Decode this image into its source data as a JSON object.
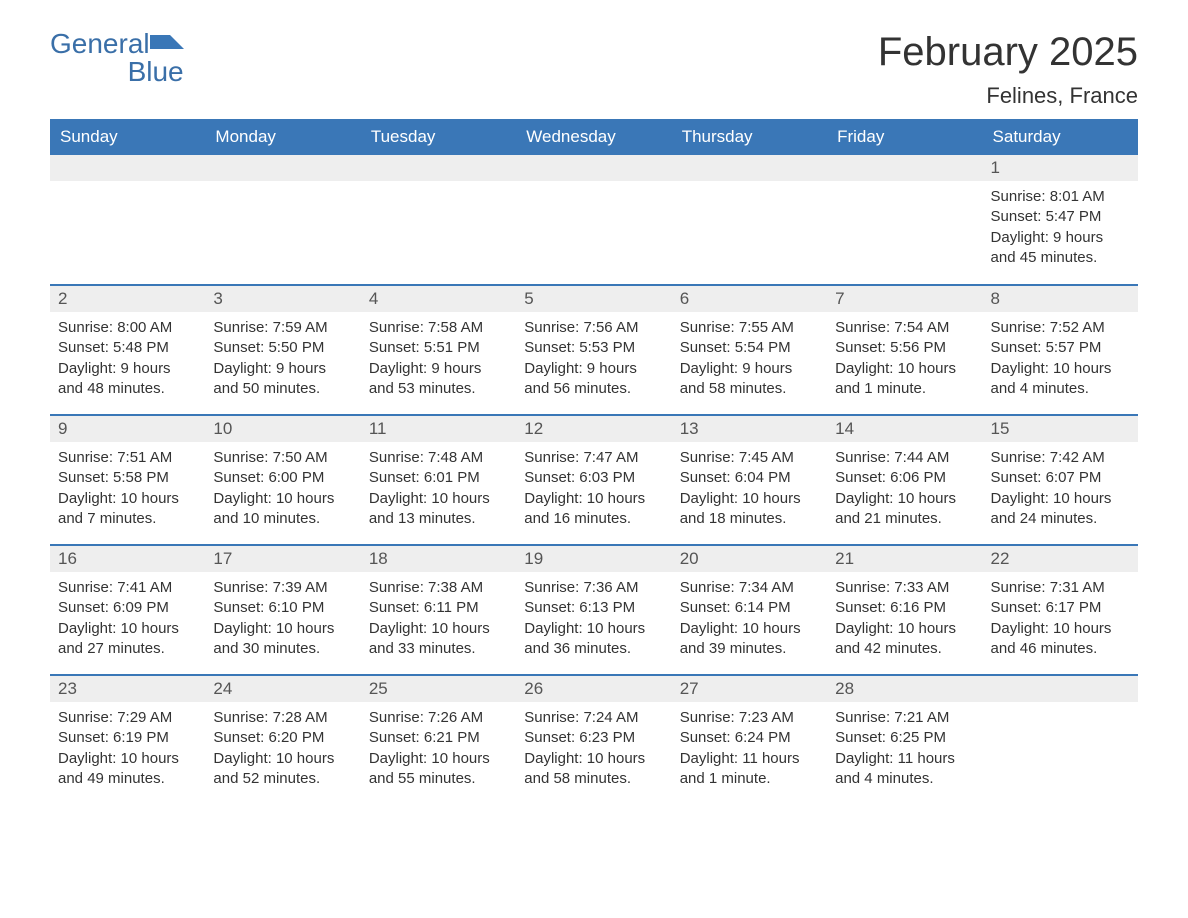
{
  "logo": {
    "word1": "General",
    "word2": "Blue",
    "color": "#3a77b7"
  },
  "title": "February 2025",
  "location": "Felines, France",
  "colors": {
    "header_bg": "#3a77b7",
    "header_text": "#ffffff",
    "daynum_bg": "#eeeeee",
    "row_border": "#3a77b7",
    "body_text": "#333333",
    "page_bg": "#ffffff"
  },
  "day_headers": [
    "Sunday",
    "Monday",
    "Tuesday",
    "Wednesday",
    "Thursday",
    "Friday",
    "Saturday"
  ],
  "weeks": [
    [
      {
        "empty": true
      },
      {
        "empty": true
      },
      {
        "empty": true
      },
      {
        "empty": true
      },
      {
        "empty": true
      },
      {
        "empty": true
      },
      {
        "day": "1",
        "sunrise": "Sunrise: 8:01 AM",
        "sunset": "Sunset: 5:47 PM",
        "daylight": "Daylight: 9 hours and 45 minutes."
      }
    ],
    [
      {
        "day": "2",
        "sunrise": "Sunrise: 8:00 AM",
        "sunset": "Sunset: 5:48 PM",
        "daylight": "Daylight: 9 hours and 48 minutes."
      },
      {
        "day": "3",
        "sunrise": "Sunrise: 7:59 AM",
        "sunset": "Sunset: 5:50 PM",
        "daylight": "Daylight: 9 hours and 50 minutes."
      },
      {
        "day": "4",
        "sunrise": "Sunrise: 7:58 AM",
        "sunset": "Sunset: 5:51 PM",
        "daylight": "Daylight: 9 hours and 53 minutes."
      },
      {
        "day": "5",
        "sunrise": "Sunrise: 7:56 AM",
        "sunset": "Sunset: 5:53 PM",
        "daylight": "Daylight: 9 hours and 56 minutes."
      },
      {
        "day": "6",
        "sunrise": "Sunrise: 7:55 AM",
        "sunset": "Sunset: 5:54 PM",
        "daylight": "Daylight: 9 hours and 58 minutes."
      },
      {
        "day": "7",
        "sunrise": "Sunrise: 7:54 AM",
        "sunset": "Sunset: 5:56 PM",
        "daylight": "Daylight: 10 hours and 1 minute."
      },
      {
        "day": "8",
        "sunrise": "Sunrise: 7:52 AM",
        "sunset": "Sunset: 5:57 PM",
        "daylight": "Daylight: 10 hours and 4 minutes."
      }
    ],
    [
      {
        "day": "9",
        "sunrise": "Sunrise: 7:51 AM",
        "sunset": "Sunset: 5:58 PM",
        "daylight": "Daylight: 10 hours and 7 minutes."
      },
      {
        "day": "10",
        "sunrise": "Sunrise: 7:50 AM",
        "sunset": "Sunset: 6:00 PM",
        "daylight": "Daylight: 10 hours and 10 minutes."
      },
      {
        "day": "11",
        "sunrise": "Sunrise: 7:48 AM",
        "sunset": "Sunset: 6:01 PM",
        "daylight": "Daylight: 10 hours and 13 minutes."
      },
      {
        "day": "12",
        "sunrise": "Sunrise: 7:47 AM",
        "sunset": "Sunset: 6:03 PM",
        "daylight": "Daylight: 10 hours and 16 minutes."
      },
      {
        "day": "13",
        "sunrise": "Sunrise: 7:45 AM",
        "sunset": "Sunset: 6:04 PM",
        "daylight": "Daylight: 10 hours and 18 minutes."
      },
      {
        "day": "14",
        "sunrise": "Sunrise: 7:44 AM",
        "sunset": "Sunset: 6:06 PM",
        "daylight": "Daylight: 10 hours and 21 minutes."
      },
      {
        "day": "15",
        "sunrise": "Sunrise: 7:42 AM",
        "sunset": "Sunset: 6:07 PM",
        "daylight": "Daylight: 10 hours and 24 minutes."
      }
    ],
    [
      {
        "day": "16",
        "sunrise": "Sunrise: 7:41 AM",
        "sunset": "Sunset: 6:09 PM",
        "daylight": "Daylight: 10 hours and 27 minutes."
      },
      {
        "day": "17",
        "sunrise": "Sunrise: 7:39 AM",
        "sunset": "Sunset: 6:10 PM",
        "daylight": "Daylight: 10 hours and 30 minutes."
      },
      {
        "day": "18",
        "sunrise": "Sunrise: 7:38 AM",
        "sunset": "Sunset: 6:11 PM",
        "daylight": "Daylight: 10 hours and 33 minutes."
      },
      {
        "day": "19",
        "sunrise": "Sunrise: 7:36 AM",
        "sunset": "Sunset: 6:13 PM",
        "daylight": "Daylight: 10 hours and 36 minutes."
      },
      {
        "day": "20",
        "sunrise": "Sunrise: 7:34 AM",
        "sunset": "Sunset: 6:14 PM",
        "daylight": "Daylight: 10 hours and 39 minutes."
      },
      {
        "day": "21",
        "sunrise": "Sunrise: 7:33 AM",
        "sunset": "Sunset: 6:16 PM",
        "daylight": "Daylight: 10 hours and 42 minutes."
      },
      {
        "day": "22",
        "sunrise": "Sunrise: 7:31 AM",
        "sunset": "Sunset: 6:17 PM",
        "daylight": "Daylight: 10 hours and 46 minutes."
      }
    ],
    [
      {
        "day": "23",
        "sunrise": "Sunrise: 7:29 AM",
        "sunset": "Sunset: 6:19 PM",
        "daylight": "Daylight: 10 hours and 49 minutes."
      },
      {
        "day": "24",
        "sunrise": "Sunrise: 7:28 AM",
        "sunset": "Sunset: 6:20 PM",
        "daylight": "Daylight: 10 hours and 52 minutes."
      },
      {
        "day": "25",
        "sunrise": "Sunrise: 7:26 AM",
        "sunset": "Sunset: 6:21 PM",
        "daylight": "Daylight: 10 hours and 55 minutes."
      },
      {
        "day": "26",
        "sunrise": "Sunrise: 7:24 AM",
        "sunset": "Sunset: 6:23 PM",
        "daylight": "Daylight: 10 hours and 58 minutes."
      },
      {
        "day": "27",
        "sunrise": "Sunrise: 7:23 AM",
        "sunset": "Sunset: 6:24 PM",
        "daylight": "Daylight: 11 hours and 1 minute."
      },
      {
        "day": "28",
        "sunrise": "Sunrise: 7:21 AM",
        "sunset": "Sunset: 6:25 PM",
        "daylight": "Daylight: 11 hours and 4 minutes."
      },
      {
        "empty": true
      }
    ]
  ]
}
